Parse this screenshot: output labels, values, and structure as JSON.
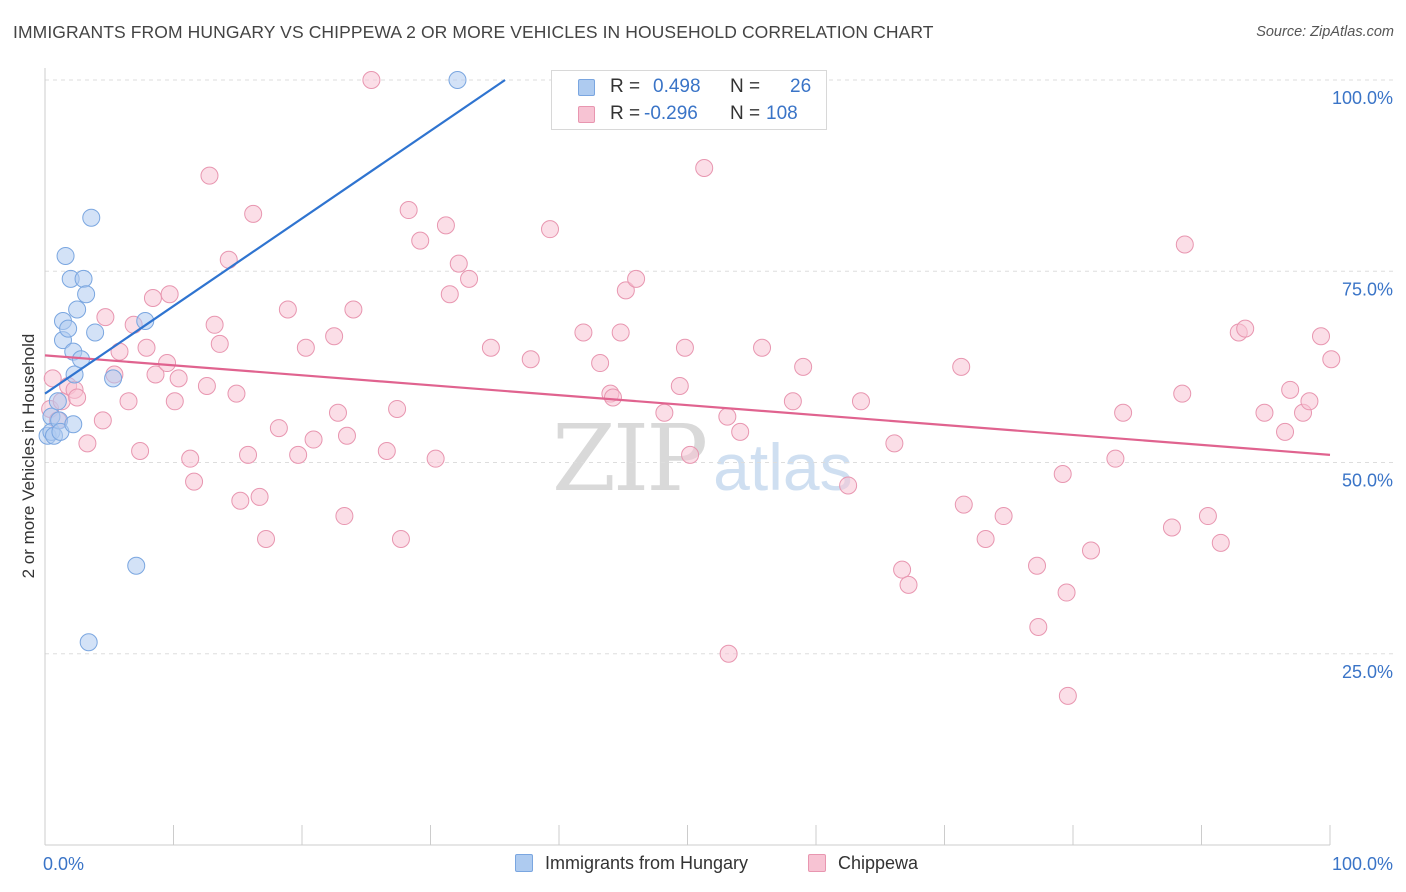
{
  "title": "IMMIGRANTS FROM HUNGARY VS CHIPPEWA 2 OR MORE VEHICLES IN HOUSEHOLD CORRELATION CHART",
  "source": "Source: ZipAtlas.com",
  "watermark": {
    "zip": "ZIP",
    "atlas": "atlas"
  },
  "legend": {
    "rows": [
      {
        "r_label": "R =",
        "r_value": "0.498",
        "n_label": "N =",
        "n_value": "26"
      },
      {
        "r_label": "R =",
        "r_value": "-0.296",
        "n_label": "N =",
        "n_value": "108"
      }
    ]
  },
  "colors": {
    "blue_fill": "#aecbf0",
    "blue_stroke": "#7aa6e0",
    "blue_line": "#2f74d0",
    "pink_fill": "#f7c3d3",
    "pink_stroke": "#e896b0",
    "pink_line": "#e0638f",
    "tick_label": "#3a74c7",
    "grid": "#dddddd"
  },
  "chart_data": {
    "type": "scatter",
    "title": "IMMIGRANTS FROM HUNGARY VS CHIPPEWA 2 OR MORE VEHICLES IN HOUSEHOLD CORRELATION CHART",
    "xlabel": "",
    "ylabel": "2 or more Vehicles in Household",
    "xlim": [
      0,
      100
    ],
    "ylim": [
      0,
      104
    ],
    "x_tick_labels": [
      "0.0%",
      "100.0%"
    ],
    "y_tick_labels": [
      "100.0%",
      "75.0%",
      "50.0%",
      "25.0%"
    ],
    "y_tick_values": [
      100,
      75,
      50,
      25
    ],
    "grid": true,
    "legend_position": "bottom",
    "series": [
      {
        "name": "Immigrants from Hungary",
        "color": "#aecbf0",
        "points": [
          [
            0.2,
            53.5
          ],
          [
            0.5,
            56.0
          ],
          [
            0.5,
            54.0
          ],
          [
            0.7,
            53.5
          ],
          [
            1.0,
            58.0
          ],
          [
            1.1,
            55.5
          ],
          [
            1.2,
            54.0
          ],
          [
            1.4,
            68.5
          ],
          [
            1.4,
            66.0
          ],
          [
            1.6,
            77.0
          ],
          [
            1.8,
            67.5
          ],
          [
            2.0,
            74.0
          ],
          [
            2.2,
            64.5
          ],
          [
            2.2,
            55.0
          ],
          [
            2.3,
            61.5
          ],
          [
            2.5,
            70.0
          ],
          [
            2.8,
            63.5
          ],
          [
            3.0,
            74.0
          ],
          [
            3.2,
            72.0
          ],
          [
            3.4,
            26.5
          ],
          [
            3.6,
            82.0
          ],
          [
            3.9,
            67.0
          ],
          [
            5.3,
            61.0
          ],
          [
            7.1,
            36.5
          ],
          [
            7.8,
            68.5
          ],
          [
            32.1,
            100.0
          ]
        ],
        "trend": {
          "x": [
            0.0,
            35.8
          ],
          "y": [
            59.0,
            100.0
          ]
        }
      },
      {
        "name": "Chippewa",
        "color": "#f7c3d3",
        "points": [
          [
            0.4,
            57.0
          ],
          [
            0.6,
            61.0
          ],
          [
            1.0,
            55.5
          ],
          [
            1.3,
            58.0
          ],
          [
            1.8,
            60.0
          ],
          [
            2.3,
            59.5
          ],
          [
            2.5,
            58.5
          ],
          [
            3.3,
            52.5
          ],
          [
            4.5,
            55.5
          ],
          [
            4.7,
            69.0
          ],
          [
            5.4,
            61.5
          ],
          [
            5.8,
            64.5
          ],
          [
            6.5,
            58.0
          ],
          [
            6.9,
            68.0
          ],
          [
            7.4,
            51.5
          ],
          [
            7.9,
            65.0
          ],
          [
            8.4,
            71.5
          ],
          [
            8.6,
            61.5
          ],
          [
            9.5,
            63.0
          ],
          [
            9.7,
            72.0
          ],
          [
            10.1,
            58.0
          ],
          [
            10.4,
            61.0
          ],
          [
            11.3,
            50.5
          ],
          [
            11.6,
            47.5
          ],
          [
            12.6,
            60.0
          ],
          [
            12.8,
            87.5
          ],
          [
            13.2,
            68.0
          ],
          [
            13.6,
            65.5
          ],
          [
            14.3,
            76.5
          ],
          [
            14.9,
            59.0
          ],
          [
            15.2,
            45.0
          ],
          [
            15.8,
            51.0
          ],
          [
            16.2,
            82.5
          ],
          [
            16.7,
            45.5
          ],
          [
            17.2,
            40.0
          ],
          [
            18.2,
            54.5
          ],
          [
            18.9,
            70.0
          ],
          [
            19.7,
            51.0
          ],
          [
            20.3,
            65.0
          ],
          [
            20.9,
            53.0
          ],
          [
            22.5,
            66.5
          ],
          [
            22.8,
            56.5
          ],
          [
            23.3,
            43.0
          ],
          [
            23.5,
            53.5
          ],
          [
            24.0,
            70.0
          ],
          [
            25.4,
            100.0
          ],
          [
            26.6,
            51.5
          ],
          [
            27.4,
            57.0
          ],
          [
            27.7,
            40.0
          ],
          [
            28.3,
            83.0
          ],
          [
            29.2,
            79.0
          ],
          [
            30.4,
            50.5
          ],
          [
            31.2,
            81.0
          ],
          [
            31.5,
            72.0
          ],
          [
            32.2,
            76.0
          ],
          [
            33.0,
            74.0
          ],
          [
            34.7,
            65.0
          ],
          [
            37.8,
            63.5
          ],
          [
            39.3,
            80.5
          ],
          [
            41.9,
            67.0
          ],
          [
            43.2,
            63.0
          ],
          [
            44.0,
            59.0
          ],
          [
            44.2,
            58.5
          ],
          [
            44.8,
            67.0
          ],
          [
            45.2,
            72.5
          ],
          [
            46.0,
            74.0
          ],
          [
            48.2,
            56.5
          ],
          [
            49.4,
            60.0
          ],
          [
            49.8,
            65.0
          ],
          [
            50.2,
            51.0
          ],
          [
            51.3,
            88.5
          ],
          [
            53.1,
            56.0
          ],
          [
            53.2,
            25.0
          ],
          [
            54.1,
            54.0
          ],
          [
            55.8,
            65.0
          ],
          [
            58.2,
            58.0
          ],
          [
            59.0,
            62.5
          ],
          [
            62.5,
            47.0
          ],
          [
            63.5,
            58.0
          ],
          [
            66.1,
            52.5
          ],
          [
            66.7,
            36.0
          ],
          [
            67.2,
            34.0
          ],
          [
            71.3,
            62.5
          ],
          [
            71.5,
            44.5
          ],
          [
            73.2,
            40.0
          ],
          [
            74.6,
            43.0
          ],
          [
            77.2,
            36.5
          ],
          [
            77.3,
            28.5
          ],
          [
            79.2,
            48.5
          ],
          [
            79.5,
            33.0
          ],
          [
            79.6,
            19.5
          ],
          [
            81.4,
            38.5
          ],
          [
            83.3,
            50.5
          ],
          [
            83.9,
            56.5
          ],
          [
            87.7,
            41.5
          ],
          [
            88.5,
            59.0
          ],
          [
            88.7,
            78.5
          ],
          [
            90.5,
            43.0
          ],
          [
            91.5,
            39.5
          ],
          [
            92.9,
            67.0
          ],
          [
            93.4,
            67.5
          ],
          [
            94.9,
            56.5
          ],
          [
            96.5,
            54.0
          ],
          [
            96.9,
            59.5
          ],
          [
            97.9,
            56.5
          ],
          [
            98.4,
            58.0
          ],
          [
            99.3,
            66.5
          ],
          [
            100.1,
            63.5
          ]
        ],
        "trend": {
          "x": [
            0.0,
            100.0
          ],
          "y": [
            64.0,
            51.0
          ]
        }
      }
    ]
  }
}
